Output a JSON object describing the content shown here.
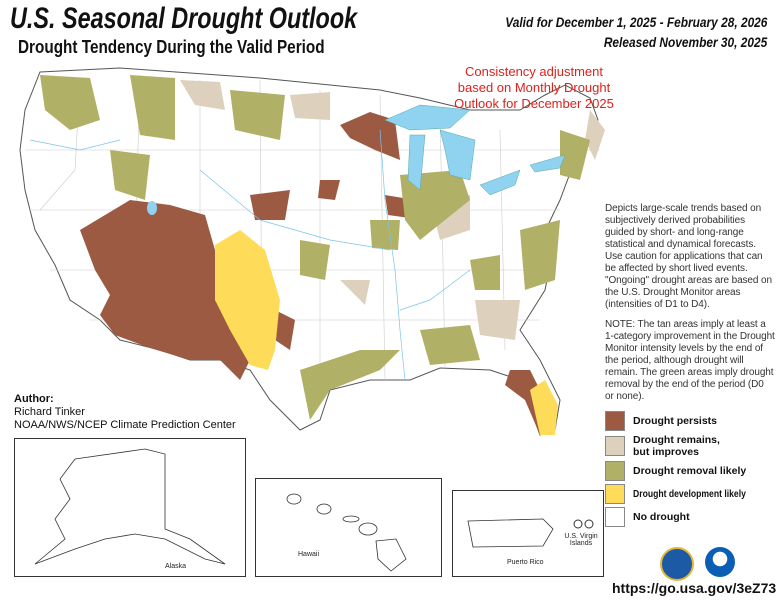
{
  "header": {
    "title": "U.S. Seasonal Drought Outlook",
    "subtitle": "Drought Tendency During the Valid Period",
    "valid": "Valid for December 1, 2025 - February 28, 2026",
    "released": "Released November 30, 2025"
  },
  "consistency_note": "Consistency adjustment based on Monthly Drought Outlook for December 2025",
  "description": "Depicts large-scale trends based on subjectively derived probabilities guided by short- and long-range statistical and dynamical forecasts. Use caution for applications that can be affected by short lived events. \"Ongoing\" drought areas are based on the U.S. Drought Monitor areas (intensities of D1 to D4).",
  "note": "NOTE: The tan areas imply at least a 1-category improvement in the Drought Monitor intensity levels by the end of the period, although drought will remain. The green areas imply drought removal by the end of the period (D0 or none).",
  "legend": [
    {
      "label": "Drought persists",
      "color": "#9c5a43"
    },
    {
      "label": "Drought remains, but improves",
      "color": "#ddd1bd"
    },
    {
      "label": "Drought removal likely",
      "color": "#b0b067"
    },
    {
      "label": "Drought development likely",
      "color": "#fedc5a"
    },
    {
      "label": "No drought",
      "color": "#ffffff"
    }
  ],
  "author": {
    "heading": "Author:",
    "name": "Richard Tinker",
    "org": "NOAA/NWS/NCEP Climate Prediction Center"
  },
  "insets": {
    "alaska": "Alaska",
    "hawaii": "Hawaii",
    "puerto_rico": "Puerto Rico",
    "virgin_islands": "U.S. Virgin Islands"
  },
  "logos": [
    "Department of Commerce seal",
    "NOAA"
  ],
  "url": "https://go.usa.gov/3eZ73",
  "colors": {
    "water": "#8fd3f0",
    "accent_red": "#e0201c"
  }
}
